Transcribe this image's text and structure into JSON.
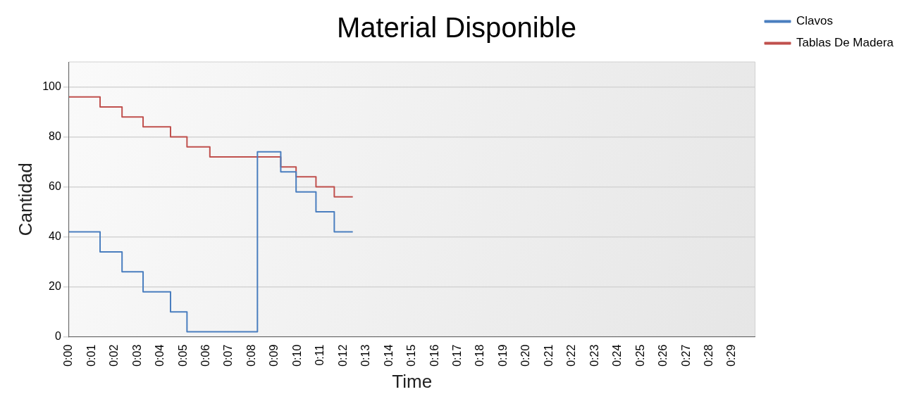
{
  "chart_data": {
    "type": "step",
    "title": "Material Disponible",
    "xlabel": "Time",
    "ylabel": "Cantidad",
    "series": [
      {
        "name": "Clavos",
        "color": "#4a7ebf",
        "x": [
          0,
          1.36,
          2.32,
          3.24,
          4.44,
          5.16,
          8.24,
          9.26,
          9.93,
          10.8,
          11.6,
          12.41
        ],
        "values": [
          42,
          34,
          26,
          18,
          10,
          2,
          74,
          66,
          58,
          50,
          42,
          42
        ]
      },
      {
        "name": "Tablas De Madera",
        "color": "#c0504d",
        "x": [
          0,
          1.36,
          2.32,
          3.24,
          4.44,
          5.16,
          6.16,
          9.26,
          9.93,
          10.8,
          11.6,
          12.41
        ],
        "values": [
          96,
          92,
          88,
          84,
          80,
          76,
          72,
          68,
          64,
          60,
          56,
          56
        ]
      }
    ],
    "xlim": [
      0,
      30
    ],
    "xticks": [
      {
        "value": 0,
        "label": "0:00"
      },
      {
        "value": 1,
        "label": "0:01"
      },
      {
        "value": 2,
        "label": "0:02"
      },
      {
        "value": 3,
        "label": "0:03"
      },
      {
        "value": 4,
        "label": "0:04"
      },
      {
        "value": 5,
        "label": "0:05"
      },
      {
        "value": 6,
        "label": "0:06"
      },
      {
        "value": 7,
        "label": "0:07"
      },
      {
        "value": 8,
        "label": "0:08"
      },
      {
        "value": 9,
        "label": "0:09"
      },
      {
        "value": 10,
        "label": "0:10"
      },
      {
        "value": 11,
        "label": "0:11"
      },
      {
        "value": 12,
        "label": "0:12"
      },
      {
        "value": 13,
        "label": "0:13"
      },
      {
        "value": 14,
        "label": "0:14"
      },
      {
        "value": 15,
        "label": "0:15"
      },
      {
        "value": 16,
        "label": "0:16"
      },
      {
        "value": 17,
        "label": "0:17"
      },
      {
        "value": 18,
        "label": "0:18"
      },
      {
        "value": 19,
        "label": "0:19"
      },
      {
        "value": 20,
        "label": "0:20"
      },
      {
        "value": 21,
        "label": "0:21"
      },
      {
        "value": 22,
        "label": "0:22"
      },
      {
        "value": 23,
        "label": "0:23"
      },
      {
        "value": 24,
        "label": "0:24"
      },
      {
        "value": 25,
        "label": "0:25"
      },
      {
        "value": 26,
        "label": "0:26"
      },
      {
        "value": 27,
        "label": "0:27"
      },
      {
        "value": 28,
        "label": "0:28"
      },
      {
        "value": 29,
        "label": "0:29"
      }
    ],
    "ylim": [
      0,
      110
    ],
    "yticks": [
      0,
      20,
      40,
      60,
      80,
      100
    ],
    "grid": "y",
    "legend": "top right",
    "line_style": "solid",
    "marker": "none"
  }
}
